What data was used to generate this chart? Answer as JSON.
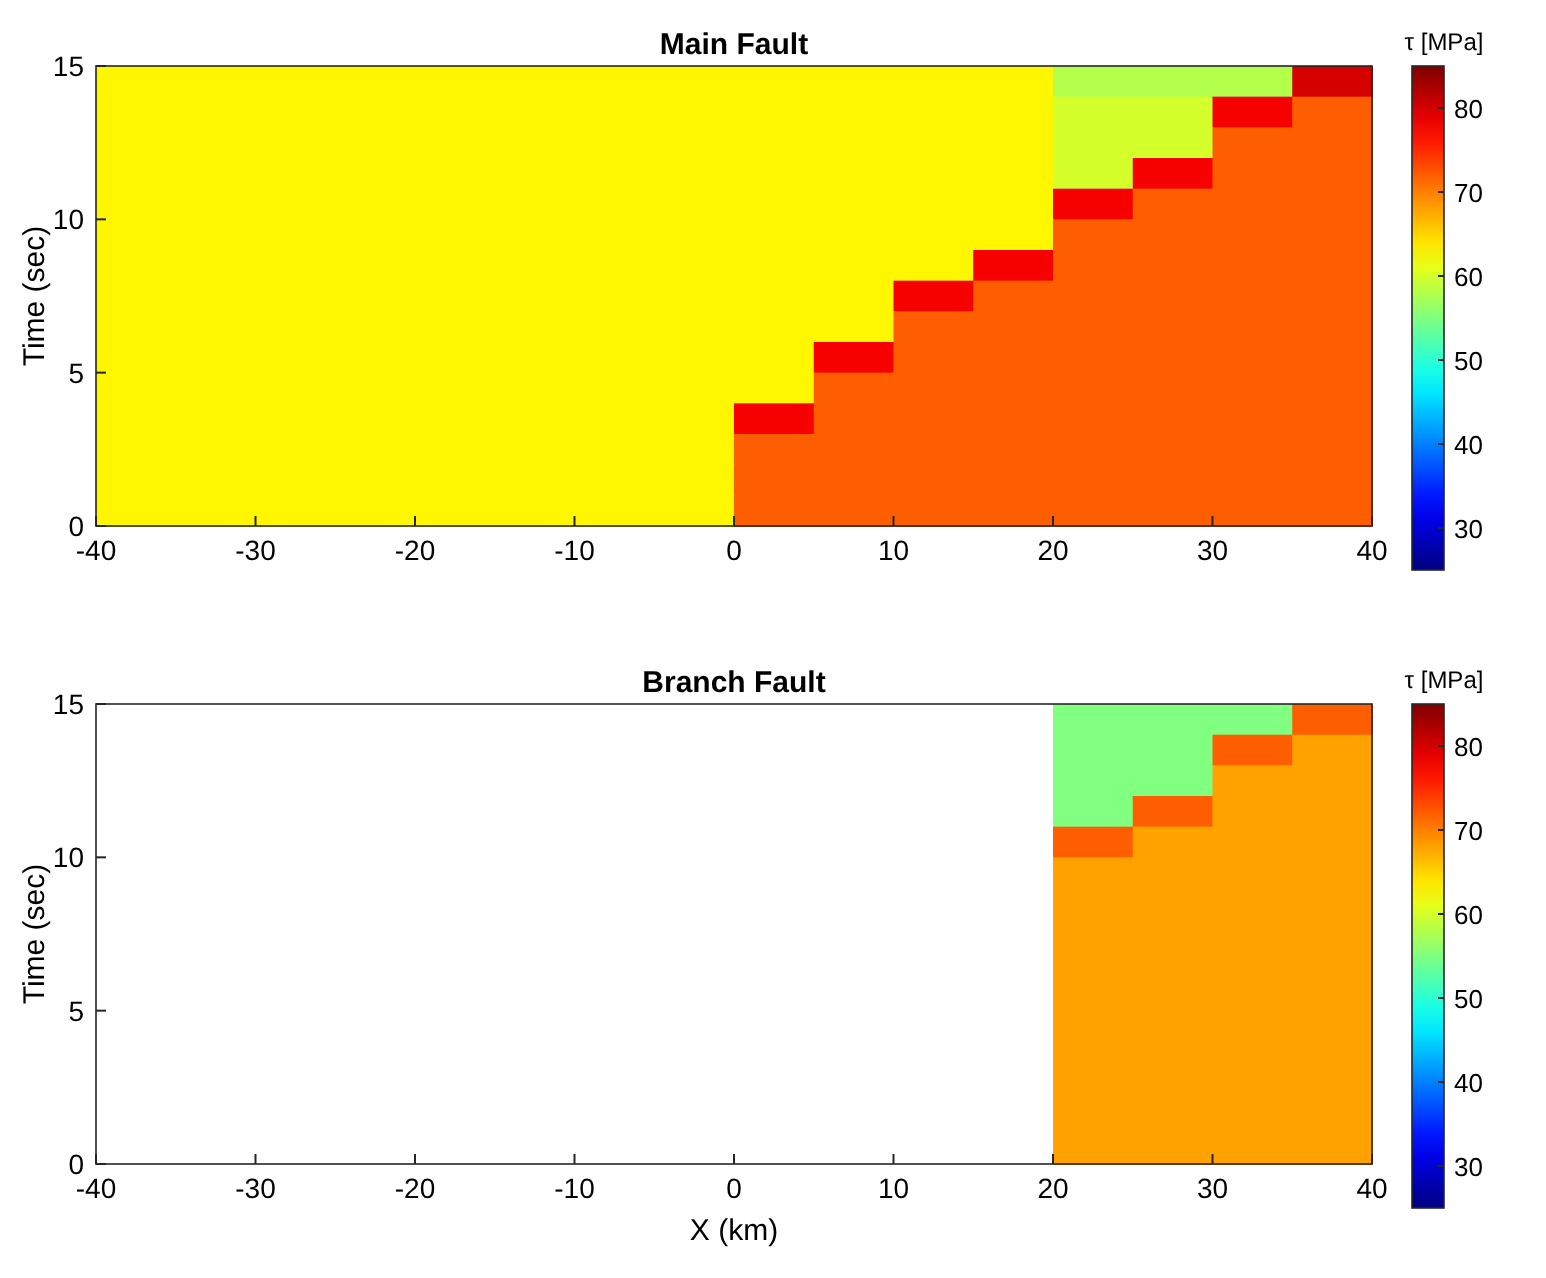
{
  "chart_data": [
    {
      "type": "heatmap",
      "title": "Main Fault",
      "ylabel": "Time (sec)",
      "clabel": "τ [MPa]",
      "xlim": [
        -40,
        40
      ],
      "ylim": [
        0,
        15
      ],
      "xticks": [
        -40,
        -30,
        -20,
        -10,
        0,
        10,
        20,
        30,
        40
      ],
      "yticks": [
        0,
        5,
        10,
        15
      ],
      "clim": [
        25,
        85
      ],
      "cticks": [
        30,
        40,
        50,
        60,
        70,
        80
      ],
      "cells": [
        [
          63,
          63,
          63,
          63,
          63,
          63,
          63,
          63,
          63,
          63,
          63,
          63,
          58,
          58,
          58,
          80
        ],
        [
          63,
          63,
          63,
          63,
          63,
          63,
          63,
          63,
          63,
          63,
          63,
          63,
          60,
          60,
          78,
          72
        ],
        [
          63,
          63,
          63,
          63,
          63,
          63,
          63,
          63,
          63,
          63,
          63,
          63,
          60,
          60,
          72,
          72
        ],
        [
          63,
          63,
          63,
          63,
          63,
          63,
          63,
          63,
          63,
          63,
          63,
          63,
          60,
          78,
          72,
          72
        ],
        [
          63,
          63,
          63,
          63,
          63,
          63,
          63,
          63,
          63,
          63,
          63,
          63,
          78,
          72,
          72,
          72
        ],
        [
          63,
          63,
          63,
          63,
          63,
          63,
          63,
          63,
          63,
          63,
          63,
          63,
          72,
          72,
          72,
          72
        ],
        [
          63,
          63,
          63,
          63,
          63,
          63,
          63,
          63,
          63,
          63,
          63,
          78,
          72,
          72,
          72,
          72
        ],
        [
          63,
          63,
          63,
          63,
          63,
          63,
          63,
          63,
          63,
          63,
          78,
          72,
          72,
          72,
          72,
          72
        ],
        [
          63,
          63,
          63,
          63,
          63,
          63,
          63,
          63,
          63,
          63,
          72,
          72,
          72,
          72,
          72,
          72
        ],
        [
          63,
          63,
          63,
          63,
          63,
          63,
          63,
          63,
          63,
          78,
          72,
          72,
          72,
          72,
          72,
          72
        ],
        [
          63,
          63,
          63,
          63,
          63,
          63,
          63,
          63,
          63,
          72,
          72,
          72,
          72,
          72,
          72,
          72
        ],
        [
          63,
          63,
          63,
          63,
          63,
          63,
          63,
          63,
          78,
          72,
          72,
          72,
          72,
          72,
          72,
          72
        ],
        [
          63,
          63,
          63,
          63,
          63,
          63,
          63,
          63,
          72,
          72,
          72,
          72,
          72,
          72,
          72,
          72
        ],
        [
          63,
          63,
          63,
          63,
          63,
          63,
          63,
          63,
          72,
          72,
          72,
          72,
          72,
          72,
          72,
          72
        ],
        [
          63,
          63,
          63,
          63,
          63,
          63,
          63,
          63,
          72,
          72,
          72,
          72,
          72,
          72,
          72,
          72
        ]
      ]
    },
    {
      "type": "heatmap",
      "title": "Branch Fault",
      "xlabel": "X (km)",
      "ylabel": "Time (sec)",
      "clabel": "τ [MPa]",
      "xlim": [
        -40,
        40
      ],
      "ylim": [
        0,
        15
      ],
      "xticks": [
        -40,
        -30,
        -20,
        -10,
        0,
        10,
        20,
        30,
        40
      ],
      "yticks": [
        0,
        5,
        10,
        15
      ],
      "clim": [
        25,
        85
      ],
      "cticks": [
        30,
        40,
        50,
        60,
        70,
        80
      ],
      "cells": [
        [
          null,
          null,
          null,
          null,
          null,
          null,
          null,
          null,
          null,
          null,
          null,
          null,
          55,
          55,
          55,
          72
        ],
        [
          null,
          null,
          null,
          null,
          null,
          null,
          null,
          null,
          null,
          null,
          null,
          null,
          55,
          55,
          72,
          68
        ],
        [
          null,
          null,
          null,
          null,
          null,
          null,
          null,
          null,
          null,
          null,
          null,
          null,
          55,
          55,
          68,
          68
        ],
        [
          null,
          null,
          null,
          null,
          null,
          null,
          null,
          null,
          null,
          null,
          null,
          null,
          55,
          72,
          68,
          68
        ],
        [
          null,
          null,
          null,
          null,
          null,
          null,
          null,
          null,
          null,
          null,
          null,
          null,
          72,
          68,
          68,
          68
        ],
        [
          null,
          null,
          null,
          null,
          null,
          null,
          null,
          null,
          null,
          null,
          null,
          null,
          68,
          68,
          68,
          68
        ],
        [
          null,
          null,
          null,
          null,
          null,
          null,
          null,
          null,
          null,
          null,
          null,
          null,
          68,
          68,
          68,
          68
        ],
        [
          null,
          null,
          null,
          null,
          null,
          null,
          null,
          null,
          null,
          null,
          null,
          null,
          68,
          68,
          68,
          68
        ],
        [
          null,
          null,
          null,
          null,
          null,
          null,
          null,
          null,
          null,
          null,
          null,
          null,
          68,
          68,
          68,
          68
        ],
        [
          null,
          null,
          null,
          null,
          null,
          null,
          null,
          null,
          null,
          null,
          null,
          null,
          68,
          68,
          68,
          68
        ],
        [
          null,
          null,
          null,
          null,
          null,
          null,
          null,
          null,
          null,
          null,
          null,
          null,
          68,
          68,
          68,
          68
        ],
        [
          null,
          null,
          null,
          null,
          null,
          null,
          null,
          null,
          null,
          null,
          null,
          null,
          68,
          68,
          68,
          68
        ],
        [
          null,
          null,
          null,
          null,
          null,
          null,
          null,
          null,
          null,
          null,
          null,
          null,
          68,
          68,
          68,
          68
        ],
        [
          null,
          null,
          null,
          null,
          null,
          null,
          null,
          null,
          null,
          null,
          null,
          null,
          68,
          68,
          68,
          68
        ],
        [
          null,
          null,
          null,
          null,
          null,
          null,
          null,
          null,
          null,
          null,
          null,
          null,
          68,
          68,
          68,
          68
        ]
      ]
    }
  ]
}
